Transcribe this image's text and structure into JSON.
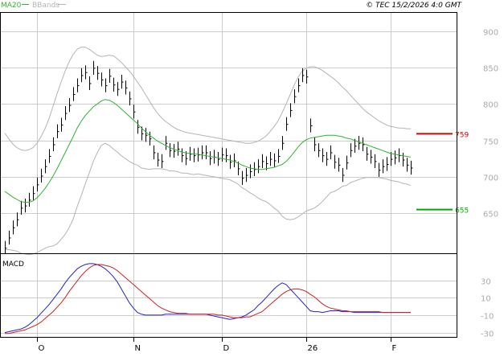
{
  "header": {
    "ma_label": "MA20",
    "bb_label": "BBands",
    "copyright": "© TEC 15/2/2026 4:0 GMT"
  },
  "colors": {
    "ma": "#2db52d",
    "bbands": "#b4b4b4",
    "price_bar": "#000000",
    "macd": "#2222cc",
    "signal": "#cc2222",
    "resistance": "#dd0000",
    "support": "#00aa00",
    "grid": "#cccccc",
    "panel_border": "#000000"
  },
  "chart_data": [
    {
      "type": "ohlc",
      "panel": "price",
      "ylim": [
        595,
        925
      ],
      "y_ticks": [
        650,
        700,
        750,
        800,
        850,
        900
      ],
      "x_tick_labels": [
        "O",
        "N",
        "D",
        "26",
        "F"
      ],
      "x_tick_index": [
        8,
        32,
        54,
        75,
        96
      ],
      "close": [
        602,
        616,
        630,
        641,
        657,
        660,
        668,
        677,
        689,
        701,
        714,
        728,
        744,
        762,
        771,
        787,
        798,
        813,
        825,
        839,
        843,
        828,
        849,
        842,
        833,
        825,
        838,
        826,
        820,
        830,
        822,
        807,
        789,
        768,
        759,
        757,
        752,
        733,
        723,
        721,
        746,
        736,
        735,
        738,
        729,
        725,
        731,
        729,
        730,
        733,
        733,
        725,
        727,
        724,
        730,
        729,
        720,
        722,
        711,
        698,
        702,
        707,
        710,
        714,
        721,
        718,
        724,
        722,
        728,
        746,
        772,
        791,
        810,
        825,
        839,
        837,
        770,
        744,
        736,
        729,
        724,
        733,
        720,
        716,
        702,
        719,
        736,
        742,
        746,
        744,
        731,
        727,
        721,
        709,
        714,
        717,
        724,
        726,
        729,
        723,
        716,
        712
      ],
      "high": [
        612,
        626,
        640,
        651,
        667,
        670,
        678,
        687,
        699,
        711,
        724,
        738,
        754,
        772,
        781,
        797,
        808,
        823,
        835,
        849,
        853,
        838,
        859,
        852,
        843,
        835,
        848,
        836,
        830,
        840,
        832,
        817,
        799,
        778,
        769,
        767,
        762,
        743,
        733,
        731,
        756,
        746,
        745,
        748,
        739,
        735,
        741,
        739,
        740,
        743,
        743,
        735,
        737,
        734,
        740,
        739,
        730,
        732,
        721,
        708,
        712,
        717,
        720,
        724,
        731,
        728,
        734,
        732,
        738,
        756,
        782,
        801,
        820,
        835,
        849,
        847,
        780,
        754,
        746,
        739,
        734,
        743,
        730,
        726,
        712,
        729,
        746,
        752,
        756,
        754,
        741,
        737,
        731,
        719,
        724,
        727,
        734,
        736,
        739,
        733,
        726,
        722
      ],
      "low": [
        594,
        607,
        621,
        632,
        648,
        651,
        659,
        668,
        680,
        692,
        705,
        719,
        735,
        753,
        762,
        778,
        789,
        804,
        816,
        830,
        834,
        819,
        840,
        833,
        824,
        816,
        829,
        817,
        811,
        821,
        813,
        798,
        780,
        759,
        750,
        748,
        743,
        724,
        714,
        712,
        737,
        727,
        726,
        729,
        720,
        716,
        722,
        720,
        721,
        724,
        724,
        716,
        718,
        715,
        721,
        720,
        711,
        713,
        702,
        689,
        693,
        698,
        701,
        705,
        712,
        709,
        715,
        713,
        719,
        737,
        763,
        782,
        801,
        816,
        830,
        828,
        761,
        735,
        727,
        720,
        715,
        724,
        711,
        707,
        693,
        710,
        727,
        733,
        737,
        735,
        722,
        718,
        712,
        700,
        705,
        708,
        715,
        717,
        720,
        714,
        707,
        703
      ],
      "ma20": [
        680,
        676,
        672,
        669,
        666,
        665,
        665,
        667,
        671,
        677,
        684,
        692,
        701,
        711,
        722,
        733,
        744,
        755,
        767,
        776,
        784,
        790,
        796,
        800,
        804,
        806,
        805,
        802,
        798,
        793,
        788,
        783,
        778,
        773,
        767,
        762,
        757,
        753,
        749,
        746,
        743,
        740,
        738,
        736,
        734,
        733,
        732,
        731,
        731,
        730,
        729,
        728,
        727,
        726,
        725,
        724,
        723,
        721,
        719,
        716,
        714,
        712,
        711,
        710,
        710,
        711,
        712,
        713,
        715,
        717,
        721,
        727,
        734,
        741,
        747,
        751,
        753,
        754,
        755,
        756,
        757,
        757,
        757,
        756,
        755,
        753,
        752,
        750,
        748,
        746,
        744,
        742,
        740,
        738,
        736,
        734,
        732,
        731,
        730,
        729,
        728,
        727
      ],
      "bb_upper": [
        760,
        752,
        745,
        740,
        737,
        736,
        737,
        740,
        746,
        755,
        766,
        780,
        797,
        814,
        830,
        845,
        858,
        868,
        875,
        878,
        878,
        875,
        871,
        867,
        865,
        866,
        867,
        866,
        862,
        857,
        851,
        845,
        838,
        830,
        822,
        813,
        804,
        795,
        787,
        781,
        776,
        772,
        768,
        765,
        763,
        761,
        760,
        759,
        758,
        757,
        756,
        755,
        754,
        753,
        752,
        751,
        750,
        749,
        748,
        747,
        746,
        746,
        747,
        749,
        752,
        756,
        762,
        769,
        777,
        788,
        800,
        813,
        826,
        837,
        845,
        849,
        851,
        851,
        849,
        846,
        842,
        838,
        834,
        829,
        823,
        818,
        812,
        806,
        800,
        794,
        789,
        785,
        781,
        777,
        774,
        771,
        769,
        768,
        767,
        767,
        766,
        766
      ],
      "bb_lower": [
        600,
        600,
        599,
        598,
        595,
        594,
        593,
        594,
        596,
        599,
        602,
        604,
        605,
        608,
        614,
        621,
        630,
        642,
        659,
        674,
        690,
        705,
        721,
        733,
        743,
        746,
        743,
        738,
        734,
        729,
        725,
        721,
        718,
        716,
        712,
        711,
        710,
        711,
        711,
        711,
        710,
        708,
        708,
        707,
        705,
        705,
        704,
        703,
        704,
        703,
        702,
        701,
        700,
        699,
        698,
        697,
        696,
        693,
        690,
        685,
        682,
        678,
        675,
        671,
        668,
        666,
        662,
        657,
        653,
        646,
        642,
        641,
        642,
        645,
        649,
        653,
        655,
        657,
        661,
        666,
        672,
        678,
        680,
        683,
        687,
        688,
        692,
        694,
        696,
        698,
        699,
        699,
        699,
        699,
        698,
        697,
        695,
        694,
        693,
        691,
        690,
        688
      ],
      "resistance": 759,
      "support": 655
    },
    {
      "type": "line",
      "panel": "macd",
      "title": "MACD",
      "ylim": [
        -35,
        60
      ],
      "y_ticks": [
        30,
        10,
        -10,
        -30
      ],
      "y_tick_labels": [
        "30",
        "10",
        "-10",
        "-30"
      ],
      "series": [
        {
          "key": "macd",
          "values": [
            -30,
            -29,
            -28,
            -27,
            -26,
            -24,
            -21,
            -17,
            -13,
            -8,
            -3,
            2,
            8,
            14,
            20,
            27,
            33,
            38,
            43,
            46,
            48,
            49,
            49,
            48,
            46,
            43,
            39,
            34,
            28,
            20,
            12,
            4,
            -2,
            -7,
            -9,
            -10,
            -10,
            -10,
            -10,
            -10,
            -9,
            -9,
            -9,
            -9,
            -9,
            -9,
            -9,
            -9,
            -9,
            -9,
            -9,
            -10,
            -11,
            -12,
            -13,
            -14,
            -15,
            -14,
            -13,
            -12,
            -10,
            -7,
            -4,
            1,
            5,
            10,
            15,
            20,
            24,
            27,
            25,
            20,
            15,
            10,
            5,
            0,
            -5,
            -6,
            -6,
            -7,
            -6,
            -5,
            -5,
            -5,
            -6,
            -6,
            -6,
            -7,
            -7,
            -7,
            -7,
            -7,
            -7,
            -7,
            -7,
            -7,
            -7,
            -7,
            -7,
            -7,
            -7,
            -7
          ]
        },
        {
          "key": "signal",
          "values": [
            -31,
            -31,
            -30,
            -29,
            -28,
            -27,
            -25,
            -23,
            -21,
            -18,
            -14,
            -10,
            -6,
            -1,
            4,
            10,
            17,
            23,
            29,
            35,
            40,
            44,
            47,
            48,
            48,
            47,
            46,
            44,
            41,
            37,
            33,
            29,
            25,
            21,
            17,
            13,
            9,
            5,
            1,
            -2,
            -4,
            -6,
            -7,
            -8,
            -8,
            -8,
            -9,
            -9,
            -9,
            -9,
            -9,
            -9,
            -9,
            -10,
            -10,
            -11,
            -12,
            -13,
            -13,
            -13,
            -12,
            -12,
            -10,
            -8,
            -6,
            -2,
            2,
            6,
            10,
            14,
            17,
            19,
            20,
            20,
            19,
            17,
            14,
            11,
            7,
            3,
            0,
            -2,
            -3,
            -4,
            -5,
            -5,
            -6,
            -6,
            -6,
            -6,
            -6,
            -6,
            -6,
            -6,
            -7,
            -7,
            -7,
            -7,
            -7,
            -7,
            -7,
            -7
          ]
        }
      ]
    }
  ]
}
